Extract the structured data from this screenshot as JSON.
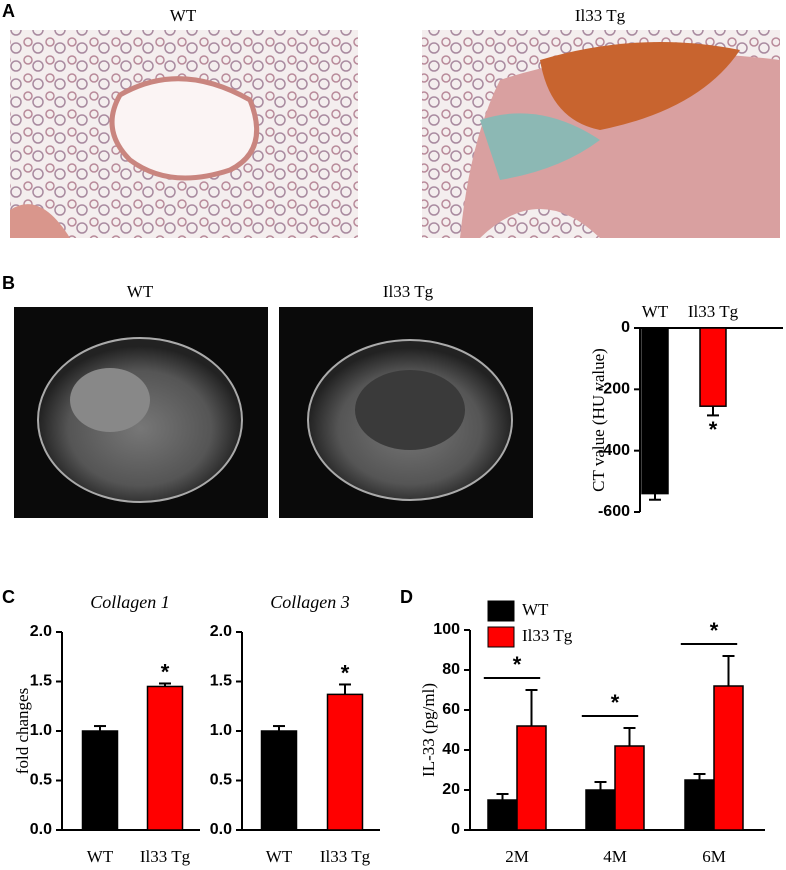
{
  "panel_labels": [
    "A",
    "B",
    "C",
    "D"
  ],
  "images": {
    "a_left_title": "WT",
    "a_right_title": "Il33 Tg",
    "b_left_title": "WT",
    "b_right_title": "Il33 Tg"
  },
  "chart_data": [
    {
      "type": "bar",
      "ylabel": "CT value (HU value)",
      "categories": [
        "WT",
        "Il33 Tg"
      ],
      "values": [
        -540,
        -255
      ],
      "errors": [
        20,
        30
      ],
      "colors": [
        "#000000",
        "#ff0000"
      ],
      "significance": [
        null,
        "*"
      ],
      "ylim": [
        -600,
        0
      ],
      "yticks": [
        -600,
        -400,
        -200,
        0
      ]
    },
    {
      "type": "bar",
      "title": "Collagen 1",
      "ylabel": "fold changes",
      "categories": [
        "WT",
        "Il33 Tg"
      ],
      "values": [
        1.0,
        1.45
      ],
      "errors": [
        0.05,
        0.03
      ],
      "colors": [
        "#000000",
        "#ff0000"
      ],
      "significance": [
        null,
        "*"
      ],
      "ylim": [
        0,
        2
      ],
      "yticks": [
        {
          "value": 0,
          "label": "0.0"
        },
        0.5,
        {
          "value": 1,
          "label": "1.0"
        },
        1.5,
        {
          "value": 2,
          "label": "2.0"
        }
      ]
    },
    {
      "type": "bar",
      "title": "Collagen 3",
      "categories": [
        "WT",
        "Il33 Tg"
      ],
      "values": [
        1.0,
        1.37
      ],
      "errors": [
        0.05,
        0.1
      ],
      "colors": [
        "#000000",
        "#ff0000"
      ],
      "significance": [
        null,
        "*"
      ],
      "ylim": [
        0,
        2
      ],
      "yticks": [
        {
          "value": 0,
          "label": "0.0"
        },
        0.5,
        {
          "value": 1,
          "label": "1.0"
        },
        1.5,
        {
          "value": 2,
          "label": "2.0"
        }
      ]
    },
    {
      "type": "grouped_bar",
      "ylabel": "IL-33 (pg/ml)",
      "categories": [
        "2M",
        "4M",
        "6M"
      ],
      "series": [
        {
          "name": "WT",
          "color": "#000000",
          "values": [
            15,
            20,
            25
          ],
          "errors": [
            3,
            4,
            3
          ]
        },
        {
          "name": "Il33 Tg",
          "color": "#ff0000",
          "values": [
            52,
            42,
            72
          ],
          "errors": [
            18,
            9,
            15
          ]
        }
      ],
      "significance": [
        "*",
        "*",
        "*"
      ],
      "ylim": [
        0,
        100
      ],
      "yticks": [
        0,
        20,
        40,
        60,
        80,
        100
      ]
    }
  ]
}
